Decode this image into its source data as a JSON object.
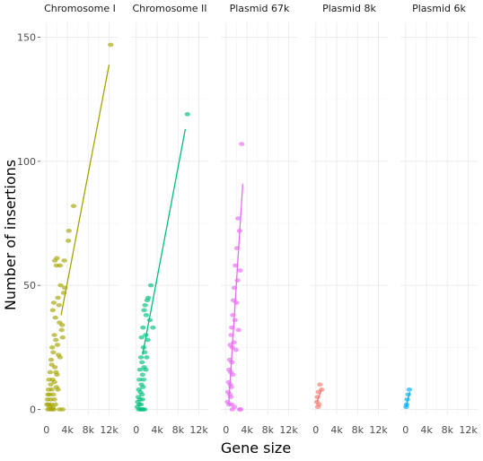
{
  "chart_data": {
    "type": "scatter",
    "xlabel": "Gene size",
    "ylabel": "Number of insertions",
    "xlim": [
      0,
      13000
    ],
    "ylim": [
      0,
      150
    ],
    "x_ticks": [
      0,
      4000,
      8000,
      12000
    ],
    "x_tick_labels": [
      "0",
      "4k",
      "8k",
      "12k"
    ],
    "y_ticks": [
      0,
      50,
      100,
      150
    ],
    "y_tick_labels": [
      "0",
      "50",
      "100",
      "150"
    ],
    "grid": true,
    "legend": "none",
    "facets": [
      {
        "name": "Chromosome I",
        "color": "#A3A500",
        "fit": {
          "x": [
            2800,
            12000
          ],
          "y": [
            38,
            139
          ]
        },
        "points": [
          [
            12300,
            147
          ],
          [
            5200,
            82
          ],
          [
            4200,
            68
          ],
          [
            4300,
            72
          ],
          [
            1600,
            60
          ],
          [
            2000,
            61
          ],
          [
            1900,
            58
          ],
          [
            3400,
            60
          ],
          [
            2600,
            58
          ],
          [
            3500,
            49
          ],
          [
            2700,
            50
          ],
          [
            2200,
            45
          ],
          [
            1400,
            43
          ],
          [
            1200,
            40
          ],
          [
            2400,
            42
          ],
          [
            3300,
            47
          ],
          [
            1700,
            37
          ],
          [
            2500,
            35
          ],
          [
            3000,
            34
          ],
          [
            2900,
            32
          ],
          [
            1500,
            30
          ],
          [
            1800,
            28
          ],
          [
            3100,
            29
          ],
          [
            2100,
            26
          ],
          [
            1100,
            25
          ],
          [
            1300,
            23
          ],
          [
            2300,
            22
          ],
          [
            900,
            20
          ],
          [
            2600,
            21
          ],
          [
            1000,
            18
          ],
          [
            1600,
            17
          ],
          [
            700,
            15
          ],
          [
            1800,
            15
          ],
          [
            2000,
            14
          ],
          [
            500,
            12
          ],
          [
            1200,
            12
          ],
          [
            1500,
            11
          ],
          [
            800,
            10
          ],
          [
            1900,
            9
          ],
          [
            400,
            8
          ],
          [
            1000,
            8
          ],
          [
            2200,
            8
          ],
          [
            300,
            6
          ],
          [
            600,
            6
          ],
          [
            1300,
            6
          ],
          [
            200,
            4
          ],
          [
            800,
            4
          ],
          [
            1500,
            4
          ],
          [
            100,
            2
          ],
          [
            400,
            2
          ],
          [
            900,
            2
          ],
          [
            1700,
            2
          ],
          [
            600,
            1
          ],
          [
            1200,
            1
          ],
          [
            300,
            0
          ],
          [
            700,
            0
          ],
          [
            1100,
            0
          ],
          [
            1400,
            0
          ],
          [
            2500,
            0
          ],
          [
            3100,
            0
          ]
        ]
      },
      {
        "name": "Chromosome II",
        "color": "#00BF7D",
        "fit": {
          "x": [
            1200,
            9400
          ],
          "y": [
            22,
            113
          ]
        },
        "points": [
          [
            9800,
            119
          ],
          [
            2800,
            50
          ],
          [
            2300,
            45
          ],
          [
            2100,
            44
          ],
          [
            1700,
            42
          ],
          [
            1500,
            40
          ],
          [
            1900,
            38
          ],
          [
            2600,
            36
          ],
          [
            3200,
            33
          ],
          [
            1300,
            33
          ],
          [
            1800,
            30
          ],
          [
            2200,
            28
          ],
          [
            1000,
            29
          ],
          [
            1400,
            25
          ],
          [
            1600,
            23
          ],
          [
            2000,
            21
          ],
          [
            900,
            21
          ],
          [
            1100,
            19
          ],
          [
            1500,
            17
          ],
          [
            1800,
            16
          ],
          [
            700,
            16
          ],
          [
            1200,
            14
          ],
          [
            1400,
            12
          ],
          [
            600,
            12
          ],
          [
            1000,
            10
          ],
          [
            1300,
            9
          ],
          [
            500,
            8
          ],
          [
            800,
            7
          ],
          [
            1100,
            6
          ],
          [
            400,
            5
          ],
          [
            700,
            4
          ],
          [
            1200,
            4
          ],
          [
            300,
            3
          ],
          [
            600,
            2
          ],
          [
            900,
            2
          ],
          [
            200,
            1
          ],
          [
            500,
            0
          ],
          [
            800,
            0
          ],
          [
            1000,
            0
          ],
          [
            1300,
            0
          ],
          [
            1600,
            0
          ]
        ]
      },
      {
        "name": "Plasmid 67k",
        "color": "#E76BF3",
        "fit": {
          "x": [
            500,
            3200
          ],
          "y": [
            2,
            91
          ]
        },
        "points": [
          [
            3000,
            107
          ],
          [
            2300,
            77
          ],
          [
            2600,
            72
          ],
          [
            2100,
            65
          ],
          [
            1800,
            58
          ],
          [
            2700,
            56
          ],
          [
            2200,
            52
          ],
          [
            1600,
            49
          ],
          [
            1400,
            44
          ],
          [
            2000,
            43
          ],
          [
            1300,
            38
          ],
          [
            1700,
            36
          ],
          [
            1100,
            33
          ],
          [
            2400,
            32
          ],
          [
            1000,
            30
          ],
          [
            1500,
            27
          ],
          [
            800,
            26
          ],
          [
            1200,
            25
          ],
          [
            1900,
            24
          ],
          [
            700,
            20
          ],
          [
            1100,
            19
          ],
          [
            600,
            16
          ],
          [
            900,
            15
          ],
          [
            1300,
            14
          ],
          [
            500,
            11
          ],
          [
            800,
            10
          ],
          [
            1000,
            9
          ],
          [
            400,
            7
          ],
          [
            700,
            6
          ],
          [
            900,
            5
          ],
          [
            300,
            3
          ],
          [
            600,
            2
          ],
          [
            1100,
            2
          ],
          [
            1600,
            1
          ],
          [
            2600,
            0
          ],
          [
            2800,
            0
          ],
          [
            1200,
            0
          ]
        ]
      },
      {
        "name": "Plasmid 8k",
        "color": "#F8766D",
        "fit": {
          "x": [
            200,
            1100
          ],
          "y": [
            3,
            8
          ]
        },
        "points": [
          [
            800,
            10
          ],
          [
            1100,
            8
          ],
          [
            500,
            7
          ],
          [
            300,
            5
          ],
          [
            200,
            3
          ],
          [
            600,
            2
          ],
          [
            400,
            1
          ]
        ]
      },
      {
        "name": "Plasmid 6k",
        "color": "#00B0F6",
        "fit": {
          "x": [
            100,
            800
          ],
          "y": [
            1,
            7
          ]
        },
        "points": [
          [
            700,
            8
          ],
          [
            500,
            6
          ],
          [
            300,
            4
          ],
          [
            200,
            2
          ],
          [
            100,
            1
          ]
        ]
      }
    ]
  }
}
